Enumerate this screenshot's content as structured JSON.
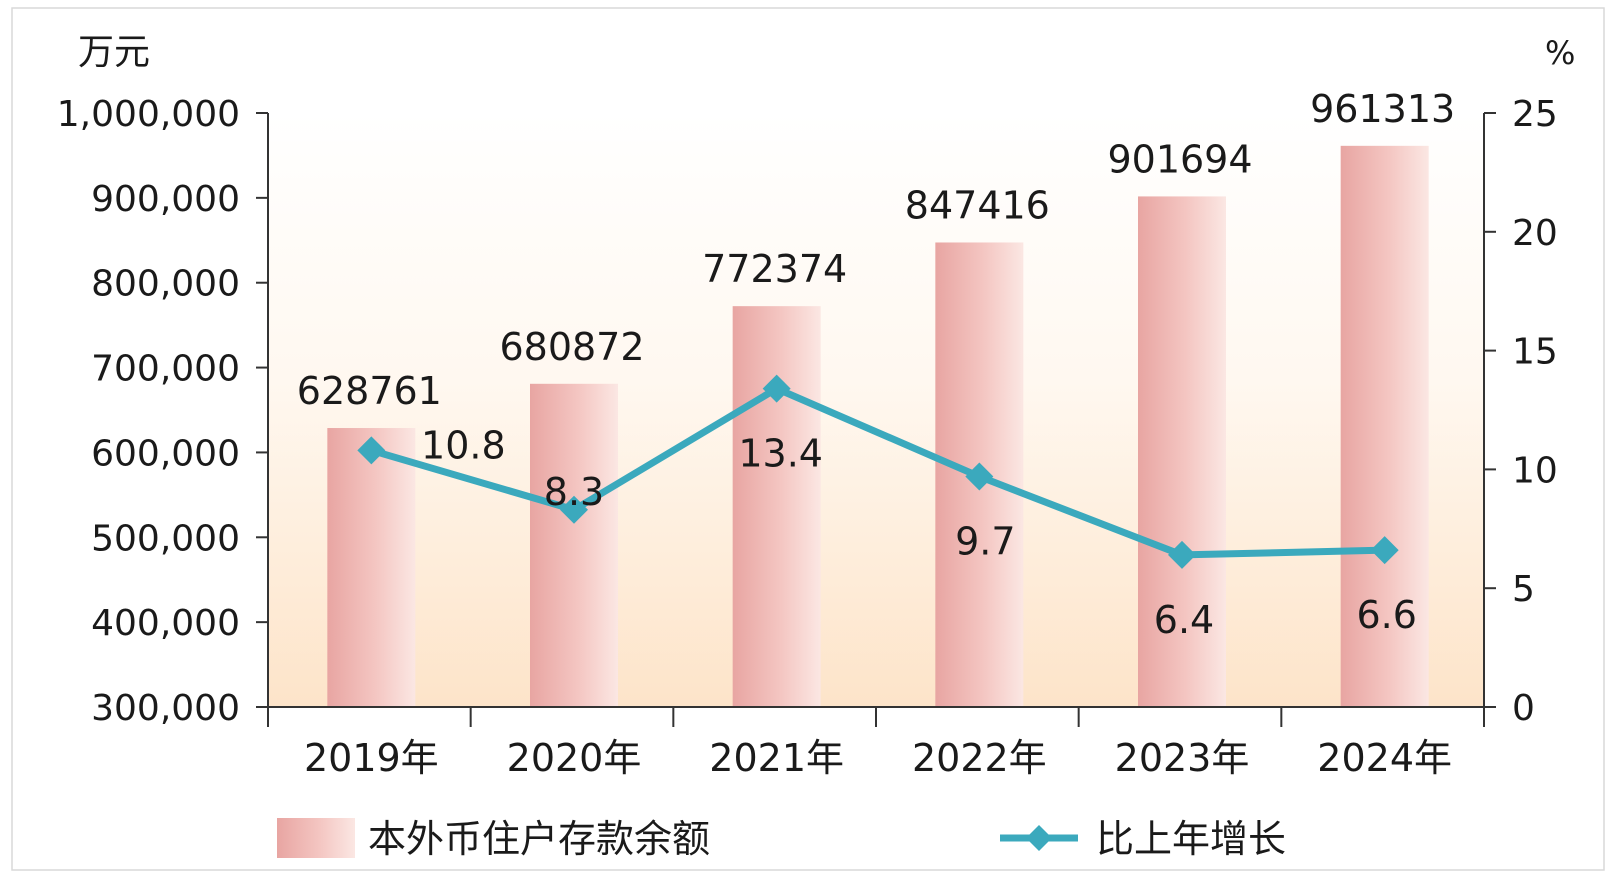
{
  "chart_data": {
    "type": "bar",
    "categories": [
      "2019年",
      "2020年",
      "2021年",
      "2022年",
      "2023年",
      "2024年"
    ],
    "series": [
      {
        "name": "本外币住户存款余额",
        "type": "bar",
        "axis": "left",
        "values": [
          628761,
          680872,
          772374,
          847416,
          901694,
          961313
        ],
        "data_labels": [
          "628761",
          "680872",
          "772374",
          "847416",
          "901694",
          "961313"
        ]
      },
      {
        "name": "比上年增长",
        "type": "line",
        "axis": "right",
        "values": [
          10.8,
          8.3,
          13.4,
          9.7,
          6.4,
          6.6
        ],
        "data_labels": [
          "10.8",
          "8.3",
          "13.4",
          "9.7",
          "6.4",
          "6.6"
        ]
      }
    ],
    "y_left": {
      "unit_label": "万元",
      "ylim": [
        300000,
        1000000
      ],
      "ticks": [
        300000,
        400000,
        500000,
        600000,
        700000,
        800000,
        900000,
        1000000
      ],
      "tick_labels": [
        "300,000",
        "400,000",
        "500,000",
        "600,000",
        "700,000",
        "800,000",
        "900,000",
        "1,000,000"
      ]
    },
    "y_right": {
      "unit_label": "%",
      "ylim": [
        0,
        25
      ],
      "ticks": [
        0,
        5,
        10,
        15,
        20,
        25
      ],
      "tick_labels": [
        "0",
        "5",
        "10",
        "15",
        "20",
        "25"
      ]
    },
    "legend": {
      "position": "bottom",
      "items": [
        {
          "label": "本外币住户存款余额",
          "kind": "bar"
        },
        {
          "label": "比上年增长",
          "kind": "line"
        }
      ]
    },
    "grid": false,
    "colors": {
      "bar_dark": "#e8a5a2",
      "bar_light": "#fbe7e3",
      "line": "#3ba9bd",
      "axis": "#333333",
      "bg_top": "#ffffff",
      "bg_bottom": "#fde4c9"
    }
  }
}
